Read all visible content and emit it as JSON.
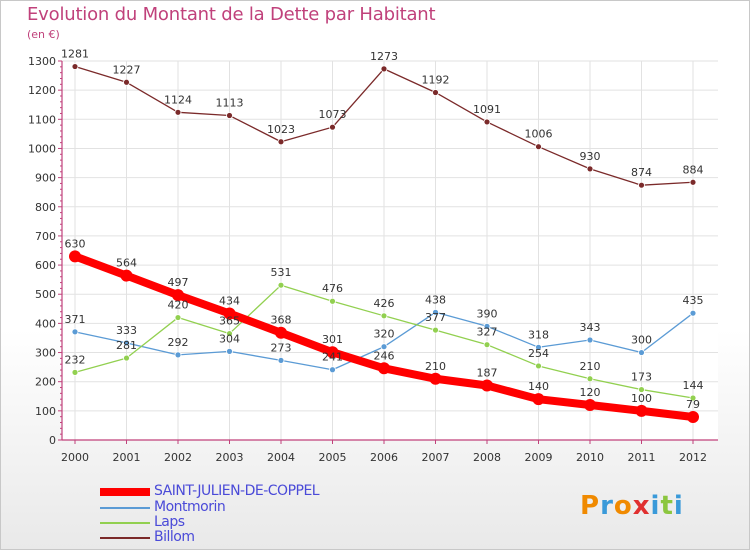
{
  "title": "Evolution du Montant de la Dette par Habitant",
  "unit": "(en €)",
  "logo": "Proxiti",
  "chart_data": {
    "type": "line",
    "x": [
      "2000",
      "2001",
      "2002",
      "2003",
      "2004",
      "2005",
      "2006",
      "2007",
      "2008",
      "2009",
      "2010",
      "2011",
      "2012"
    ],
    "ylim": [
      0,
      1300
    ],
    "yticks": [
      0,
      100,
      200,
      300,
      400,
      500,
      600,
      700,
      800,
      900,
      1000,
      1100,
      1200,
      1300
    ],
    "grid": true,
    "legend_position": "bottom-left",
    "series": [
      {
        "name": "SAINT-JULIEN-DE-COPPEL",
        "color": "#ff0000",
        "values": [
          630,
          564,
          497,
          434,
          368,
          301,
          246,
          210,
          187,
          140,
          120,
          100,
          79
        ]
      },
      {
        "name": "Montmorin",
        "color": "#5b9bd5",
        "values": [
          371,
          333,
          292,
          304,
          273,
          241,
          320,
          438,
          390,
          318,
          343,
          300,
          435
        ]
      },
      {
        "name": "Laps",
        "color": "#92d050",
        "values": [
          232,
          281,
          420,
          365,
          531,
          476,
          426,
          377,
          327,
          254,
          210,
          173,
          144
        ]
      },
      {
        "name": "Billom",
        "color": "#7b2a2a",
        "values": [
          1281,
          1227,
          1124,
          1113,
          1023,
          1073,
          1273,
          1192,
          1091,
          1006,
          930,
          874,
          884
        ]
      }
    ]
  }
}
